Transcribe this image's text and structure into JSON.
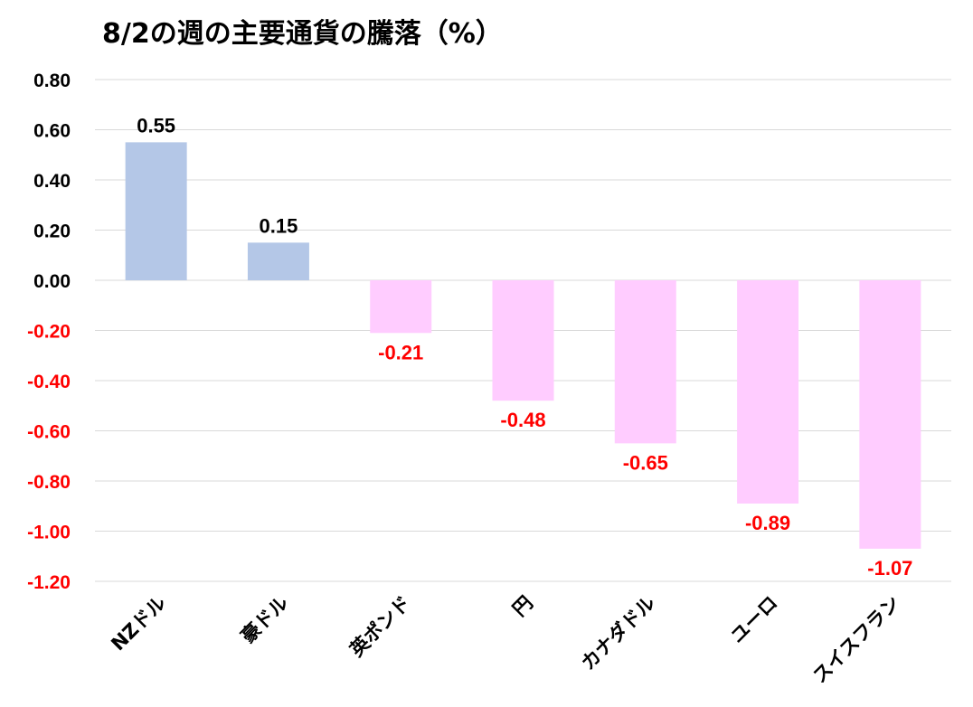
{
  "chart_data": {
    "type": "bar",
    "title": "8/2の週の主要通貨の騰落（%）",
    "categories": [
      "NZドル",
      "豪ドル",
      "英ポンド",
      "円",
      "カナダドル",
      "ユーロ",
      "スイスフラン"
    ],
    "values": [
      0.55,
      0.15,
      -0.21,
      -0.48,
      -0.65,
      -0.89,
      -1.07
    ],
    "value_labels": [
      "0.55",
      "0.15",
      "-0.21",
      "-0.48",
      "-0.65",
      "-0.89",
      "-1.07"
    ],
    "ylim": [
      -1.2,
      0.8
    ],
    "yticks": [
      "0.80",
      "0.60",
      "0.40",
      "0.20",
      "0.00",
      "-0.20",
      "-0.40",
      "-0.60",
      "-0.80",
      "-1.00",
      "-1.20"
    ],
    "xlabel": "",
    "ylabel": "",
    "grid": true,
    "legend": "none",
    "colors": {
      "positive_bar": "#b4c7e7",
      "negative_bar": "#ffccff",
      "positive_text": "#000000",
      "negative_text": "#ff0000"
    }
  }
}
